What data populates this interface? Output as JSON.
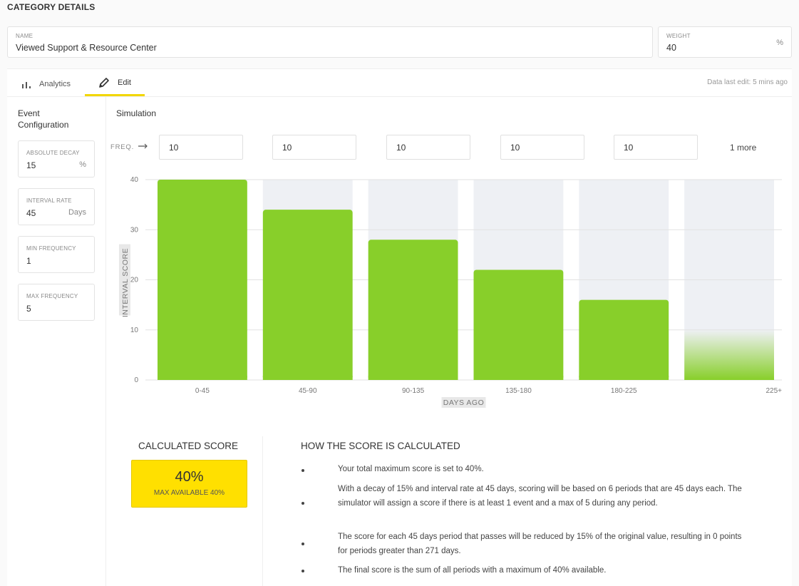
{
  "page_title": "CATEGORY DETAILS",
  "name_field": {
    "label": "NAME",
    "value": "Viewed Support & Resource Center"
  },
  "weight_field": {
    "label": "WEIGHT",
    "value": "40",
    "unit": "%"
  },
  "tabs": [
    {
      "label": "Analytics",
      "icon": "bar-chart-icon"
    },
    {
      "label": "Edit",
      "icon": "pencil-icon"
    }
  ],
  "data_last_edit": "Data last edit: 5 mins ago",
  "event_config": {
    "title": "Event Configuration",
    "fields": [
      {
        "label": "ABSOLUTE DECAY",
        "value": "15",
        "unit": "%"
      },
      {
        "label": "INTERVAL RATE",
        "value": "45",
        "unit": "Days"
      },
      {
        "label": "MIN FREQUENCY",
        "value": "1",
        "unit": ""
      },
      {
        "label": "MAX FREQUENCY",
        "value": "5",
        "unit": ""
      }
    ]
  },
  "simulation": {
    "title": "Simulation",
    "freq_label": "FREQ.",
    "freq_values": [
      "10",
      "10",
      "10",
      "10",
      "10"
    ],
    "more_label": "1 more"
  },
  "chart_data": {
    "type": "bar",
    "categories": [
      "0-45",
      "45-90",
      "90-135",
      "135-180",
      "180-225",
      "225+"
    ],
    "values": [
      40,
      34,
      28,
      22,
      16,
      10
    ],
    "xlabel": "DAYS AGO",
    "ylabel": "INTERVAL SCORE",
    "ylim": [
      0,
      40
    ],
    "yticks": [
      0,
      10,
      20,
      30,
      40
    ],
    "grid": true,
    "bar_color": "#88cf2a",
    "last_bar_faded": true
  },
  "calculated_score": {
    "title": "CALCULATED SCORE",
    "value": "40%",
    "subtitle": "MAX AVAILABLE 40%",
    "color": "#ffe000"
  },
  "how_calculated": {
    "title": "HOW THE SCORE IS CALCULATED",
    "bullets": [
      "Your total maximum score is set to 40%.",
      "With a decay of 15% and interval rate at 45 days, scoring will be based on 6 periods that are 45 days each. The simulator will assign a score if there is at least 1 event and a max of 5 during any period.",
      "The score for each 45 days period that passes will be reduced by 15% of the original value, resulting in 0 points for periods greater than 271 days.",
      "The final score is the sum of all periods with a maximum of 40% available."
    ]
  }
}
